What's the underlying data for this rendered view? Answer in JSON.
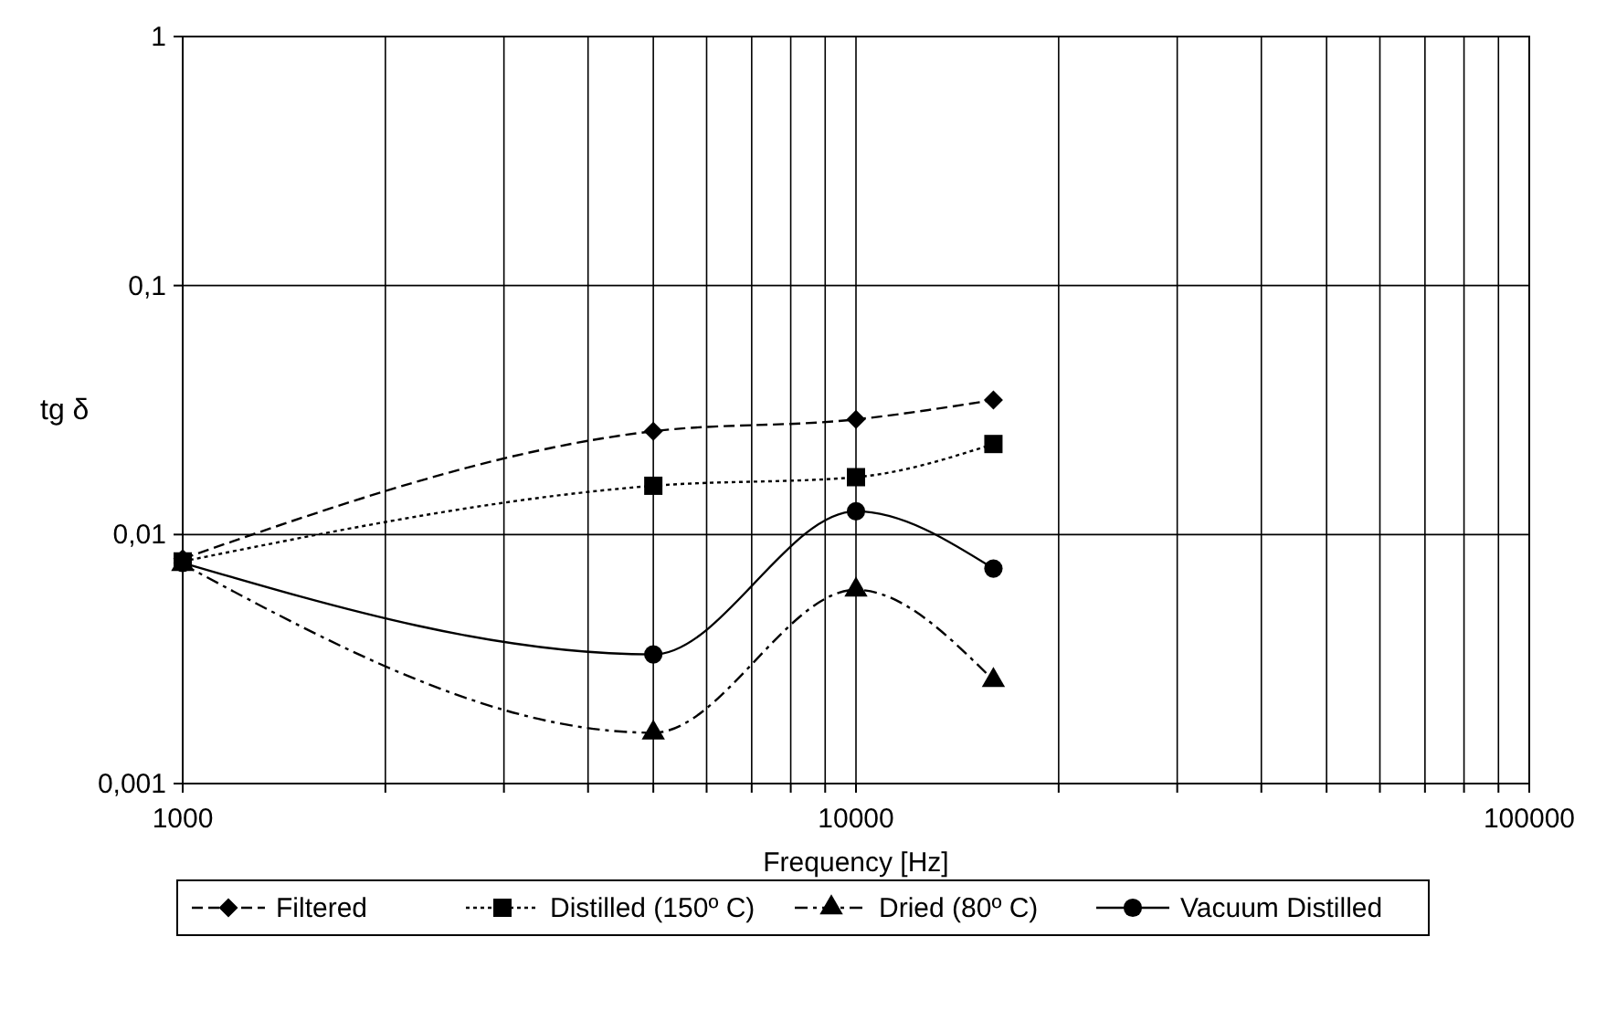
{
  "chart_data": {
    "type": "line",
    "xlabel": "Frequency [Hz]",
    "ylabel": "tg δ",
    "log": "xy",
    "grid": true,
    "legend": "bottom",
    "xlim": [
      1000,
      100000
    ],
    "ylim": [
      0.001,
      1
    ],
    "xticks": [
      1000,
      {
        "value": 2000,
        "label": null
      },
      {
        "value": 3000,
        "label": null
      },
      {
        "value": 4000,
        "label": null
      },
      {
        "value": 5000,
        "label": null
      },
      {
        "value": 6000,
        "label": null
      },
      {
        "value": 7000,
        "label": null
      },
      {
        "value": 8000,
        "label": null
      },
      {
        "value": 9000,
        "label": null
      },
      10000,
      {
        "value": 20000,
        "label": null
      },
      {
        "value": 30000,
        "label": null
      },
      {
        "value": 40000,
        "label": null
      },
      {
        "value": 50000,
        "label": null
      },
      {
        "value": 60000,
        "label": null
      },
      {
        "value": 70000,
        "label": null
      },
      {
        "value": 80000,
        "label": null
      },
      {
        "value": 90000,
        "label": null
      },
      100000
    ],
    "yticks": [
      {
        "value": 0.001,
        "label": "0,001"
      },
      {
        "value": 0.01,
        "label": "0,01"
      },
      {
        "value": 0.1,
        "label": "0,1"
      },
      1
    ],
    "x": [
      1000,
      5000,
      10000,
      16000
    ],
    "series": [
      {
        "name": "Filtered",
        "color": "#000000",
        "marker": "diamond",
        "line_style": "dashed",
        "values": [
          0.008,
          0.026,
          0.029,
          0.0347
        ]
      },
      {
        "name": "Distilled (150º C)",
        "color": "#000000",
        "marker": "square",
        "line_style": "dotted",
        "values": [
          0.0078,
          0.0157,
          0.017,
          0.0231
        ]
      },
      {
        "name": "Dried (80º C)",
        "color": "#000000",
        "marker": "triangle",
        "line_style": "dashdot",
        "values": [
          0.0076,
          0.0016,
          0.006,
          0.0026
        ]
      },
      {
        "name": "Vacuum Distilled",
        "color": "#000000",
        "marker": "circle",
        "line_style": "solid",
        "values": [
          0.0077,
          0.0033,
          0.0124,
          0.0073
        ]
      }
    ]
  }
}
